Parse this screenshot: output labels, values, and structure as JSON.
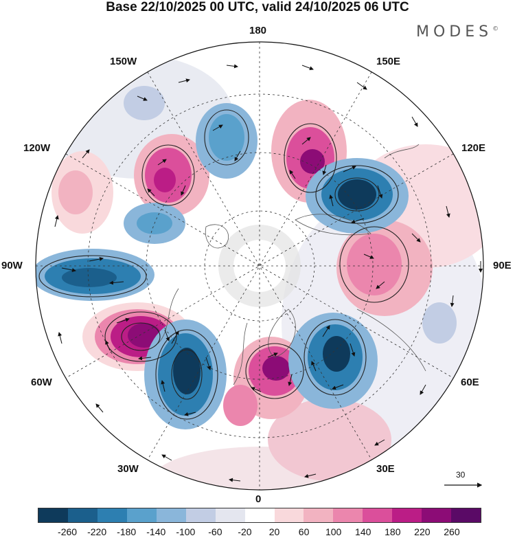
{
  "title": "Base 22/10/2025 00 UTC, valid 24/10/2025 06 UTC",
  "brand": "MODES",
  "brand_mark": "©",
  "longitude_labels": {
    "top": "180",
    "bottom": "0",
    "left": "90W",
    "right": "90E",
    "upper_left": "150W",
    "upper_right": "150E",
    "mid_left_upper": "120W",
    "mid_right_upper": "120E",
    "mid_left_lower": "60W",
    "mid_right_lower": "60E",
    "lower_left": "30W",
    "lower_right": "30E"
  },
  "reference_vector": {
    "value": "30"
  },
  "colorbar": {
    "colors": [
      "#0e3a5b",
      "#1b5f8c",
      "#2d7fb1",
      "#5aa1cc",
      "#8ab6da",
      "#c2cde4",
      "#e4e6ef",
      "#ffffff",
      "#f9d9dc",
      "#f2b3c1",
      "#eb86ad",
      "#db4f9b",
      "#bb1d86",
      "#8c0c76",
      "#5a0a66"
    ],
    "tick_labels": [
      "-260",
      "-220",
      "-180",
      "-140",
      "-100",
      "-60",
      "-20",
      "20",
      "60",
      "100",
      "140",
      "180",
      "220",
      "260"
    ]
  }
}
